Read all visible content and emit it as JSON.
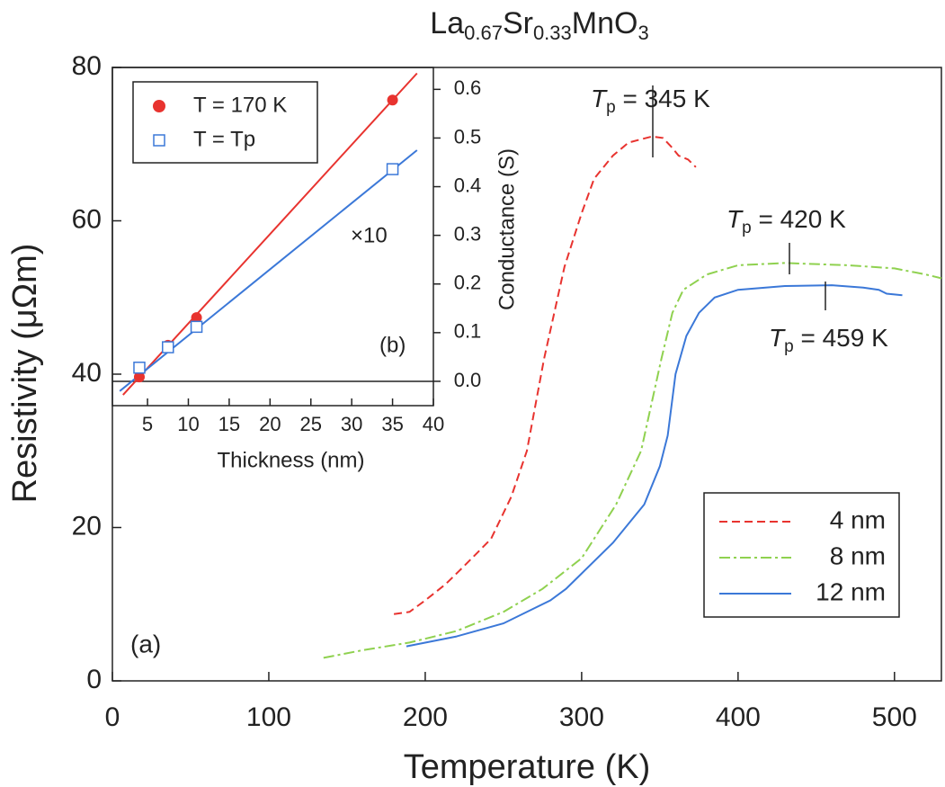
{
  "chart_data": [
    {
      "type": "line",
      "title": {
        "parts": [
          "La",
          "0.67",
          "Sr",
          "0.33",
          "MnO",
          "3"
        ]
      },
      "xlabel": "Temperature (K)",
      "ylabel": "Resistivity (μΩm)",
      "xlim": [
        0,
        530
      ],
      "ylim": [
        0,
        80
      ],
      "xticks": [
        0,
        100,
        200,
        300,
        400,
        500
      ],
      "yticks": [
        0,
        20,
        40,
        60,
        80
      ],
      "panel_label": "(a)",
      "legend": "lower right",
      "series": [
        {
          "name": "4 nm",
          "color": "#e8332f",
          "style": "dashed",
          "x": [
            180,
            190,
            200,
            213,
            225,
            242,
            255,
            265,
            276,
            289,
            300,
            308,
            320,
            330,
            345,
            352,
            358,
            362,
            368,
            373
          ],
          "values": [
            8.7,
            9,
            10.5,
            12.6,
            15,
            18.5,
            24,
            30,
            42,
            54,
            61,
            65.5,
            68.5,
            70.2,
            71,
            70.8,
            69.5,
            68.5,
            68,
            67
          ]
        },
        {
          "name": "8 nm",
          "color": "#8fd14f",
          "style": "dashdot",
          "x": [
            135,
            160,
            190,
            220,
            250,
            275,
            300,
            322,
            338,
            351,
            358,
            365,
            380,
            400,
            430,
            470,
            500,
            520,
            530
          ],
          "values": [
            3,
            4,
            5,
            6.5,
            9,
            12,
            16,
            23,
            30,
            42,
            48,
            51,
            53,
            54.2,
            54.5,
            54.2,
            53.8,
            53,
            52.5
          ]
        },
        {
          "name": "12 nm",
          "color": "#3b78d8",
          "style": "solid",
          "x": [
            188,
            220,
            250,
            280,
            290,
            300,
            320,
            340,
            350,
            355,
            360,
            367,
            375,
            385,
            400,
            430,
            460,
            480,
            490,
            495,
            505
          ],
          "values": [
            4.5,
            5.8,
            7.5,
            10.5,
            12,
            14,
            18,
            23,
            28,
            32,
            40,
            45,
            48,
            50,
            51,
            51.5,
            51.6,
            51.3,
            51,
            50.5,
            50.3
          ]
        }
      ],
      "annotations": [
        {
          "symbol": "T",
          "sub": "p",
          "text": " = 345 K"
        },
        {
          "symbol": "T",
          "sub": "p",
          "text": " = 420 K"
        },
        {
          "symbol": "T",
          "sub": "p",
          "text": " = 459 K"
        }
      ]
    },
    {
      "type": "scatter",
      "xlabel": "Thickness (nm)",
      "y2label": "Conductance (S)",
      "xlim": [
        0.7,
        40
      ],
      "y2lim": [
        -0.05,
        0.645
      ],
      "xticks": [
        5,
        10,
        15,
        20,
        25,
        30,
        35,
        40
      ],
      "y2ticks": [
        {
          "value": 0,
          "label": "0.0"
        },
        0.1,
        0.2,
        0.3,
        0.4,
        0.5,
        0.6
      ],
      "panel_label": "(b)",
      "note": "×10",
      "legend": "upper left",
      "series": [
        {
          "name": "T = 170 K",
          "color": "#e8332f",
          "marker": "filled-circle",
          "axis": "y2",
          "x": [
            4,
            7.5,
            11,
            35
          ],
          "values": [
            0.009,
            0.074,
            0.131,
            0.578
          ],
          "fit_x": [
            2,
            38
          ],
          "fit_values": [
            -0.028,
            0.633
          ]
        },
        {
          "name": "T = Tp",
          "color": "#3b78d8",
          "marker": "open-square",
          "axis": "y2",
          "x": [
            4,
            7.5,
            11,
            35
          ],
          "values": [
            0.028,
            0.07,
            0.112,
            0.436
          ],
          "fit_x": [
            1.6,
            38
          ],
          "fit_values": [
            -0.02,
            0.475
          ]
        }
      ]
    }
  ]
}
